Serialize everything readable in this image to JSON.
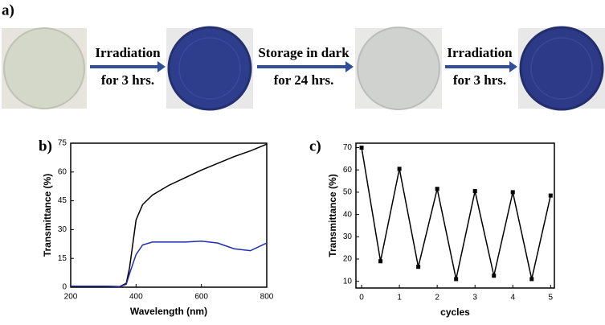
{
  "figure": {
    "label": "a)",
    "steps": [
      {
        "top": "Irradiation",
        "bottom": "for 3 hrs."
      },
      {
        "top": "Storage in dark",
        "bottom": "for 24 hrs."
      },
      {
        "top": "Irradiation",
        "bottom": "for 3 hrs."
      }
    ]
  },
  "chart_data": [
    {
      "type": "line",
      "label": "b)",
      "xlabel": "Wavelength (nm)",
      "ylabel": "Transmittance (%)",
      "x": [
        200,
        300,
        350,
        370,
        380,
        400,
        420,
        450,
        500,
        550,
        600,
        650,
        700,
        750,
        800
      ],
      "series": [
        {
          "color": "#000000",
          "values": [
            0.5,
            0.5,
            0.3,
            2,
            10,
            35,
            43,
            48,
            53,
            57,
            61,
            64.5,
            68,
            71,
            74.5
          ]
        },
        {
          "color": "#1f2fb0",
          "values": [
            0.5,
            0.5,
            0.3,
            1.5,
            7,
            17,
            22,
            23.5,
            23.5,
            23.5,
            24,
            23,
            20,
            19,
            23
          ]
        }
      ],
      "xlim": [
        200,
        800
      ],
      "xticks": [
        200,
        400,
        600,
        800
      ],
      "ylim": [
        0,
        75
      ],
      "yticks": [
        0,
        15,
        30,
        45,
        60,
        75
      ],
      "markers": false
    },
    {
      "type": "line",
      "label": "c)",
      "xlabel": "cycles",
      "ylabel": "Transmittance (%)",
      "x": [
        0,
        0.5,
        1,
        1.5,
        2,
        2.5,
        3,
        3.5,
        4,
        4.5,
        5
      ],
      "series": [
        {
          "color": "#000000",
          "values": [
            70,
            19,
            60.5,
            16.5,
            51.5,
            11,
            50.5,
            12.5,
            50,
            11,
            48.5
          ]
        }
      ],
      "xlim": [
        -0.15,
        5.1
      ],
      "xticks": [
        0,
        1,
        2,
        3,
        4,
        5
      ],
      "ylim": [
        7,
        72
      ],
      "yticks": [
        10,
        20,
        30,
        40,
        50,
        60,
        70
      ],
      "markers": true
    }
  ]
}
